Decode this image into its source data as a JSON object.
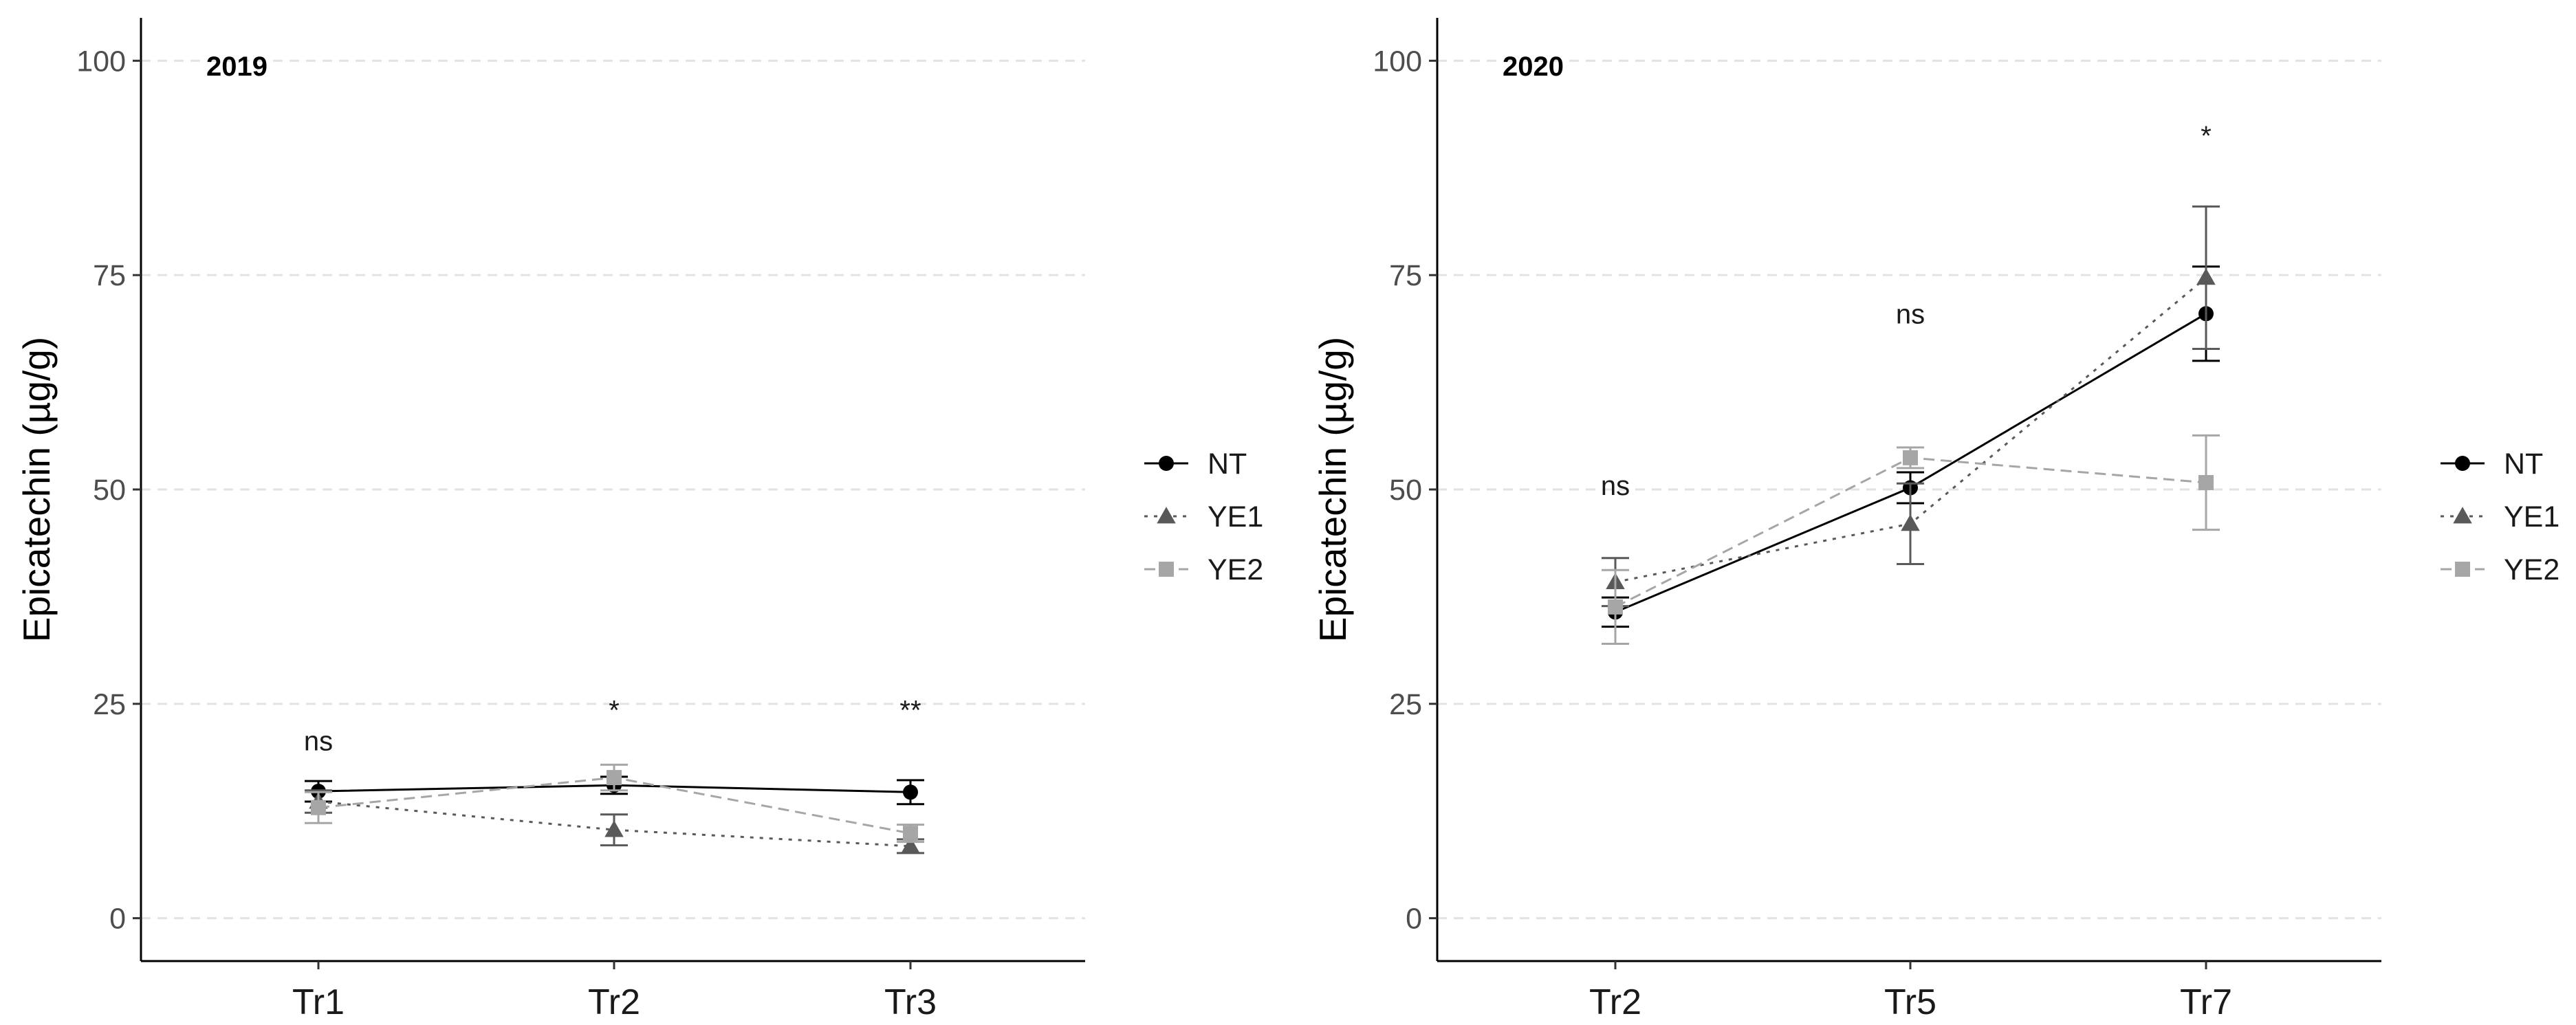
{
  "chart_data": [
    {
      "type": "line",
      "title": "2019",
      "xlabel": "",
      "ylabel": "Epicatechin (µg/g)",
      "categories": [
        "Tr1",
        "Tr2",
        "Tr3"
      ],
      "ylim": [
        -5,
        105
      ],
      "yticks": [
        0,
        25,
        50,
        75,
        100
      ],
      "grid": "horizontal-dashed",
      "legend": "right",
      "series": [
        {
          "name": "NT",
          "marker": "circle",
          "line": "solid",
          "color": "#000000",
          "values": [
            14.8,
            15.5,
            14.7
          ],
          "errors": [
            1.2,
            1.0,
            1.4
          ]
        },
        {
          "name": "YE1",
          "marker": "triangle",
          "line": "dotted",
          "color": "#595959",
          "values": [
            13.6,
            10.3,
            8.4
          ],
          "errors": [
            1.3,
            1.8,
            0.8
          ]
        },
        {
          "name": "YE2",
          "marker": "square",
          "line": "dashed",
          "color": "#a6a6a6",
          "values": [
            12.9,
            16.4,
            9.9
          ],
          "errors": [
            1.8,
            1.5,
            1.0
          ]
        }
      ],
      "annotations": [
        {
          "category": "Tr1",
          "text": "ns",
          "y": 20.7
        },
        {
          "category": "Tr2",
          "text": "*",
          "y": 24.3
        },
        {
          "category": "Tr3",
          "text": "**",
          "y": 24.3
        }
      ]
    },
    {
      "type": "line",
      "title": "2020",
      "xlabel": "",
      "ylabel": "Epicatechin (µg/g)",
      "categories": [
        "Tr2",
        "Tr5",
        "Tr7"
      ],
      "ylim": [
        -5,
        105
      ],
      "yticks": [
        0,
        25,
        50,
        75,
        100
      ],
      "grid": "horizontal-dashed",
      "legend": "right",
      "series": [
        {
          "name": "NT",
          "marker": "circle",
          "line": "solid",
          "color": "#000000",
          "values": [
            35.7,
            50.2,
            70.5
          ],
          "errors": [
            1.7,
            1.8,
            5.5
          ]
        },
        {
          "name": "YE1",
          "marker": "triangle",
          "line": "dotted",
          "color": "#595959",
          "values": [
            39.2,
            46.0,
            74.7
          ],
          "errors": [
            2.8,
            4.7,
            8.3
          ]
        },
        {
          "name": "YE2",
          "marker": "square",
          "line": "dashed",
          "color": "#a6a6a6",
          "values": [
            36.3,
            53.7,
            50.8
          ],
          "errors": [
            4.3,
            1.2,
            5.5
          ]
        }
      ],
      "annotations": [
        {
          "category": "Tr2",
          "text": "ns",
          "y": 50.5
        },
        {
          "category": "Tr5",
          "text": "ns",
          "y": 70.5
        },
        {
          "category": "Tr7",
          "text": "*",
          "y": 91.3
        }
      ]
    }
  ]
}
